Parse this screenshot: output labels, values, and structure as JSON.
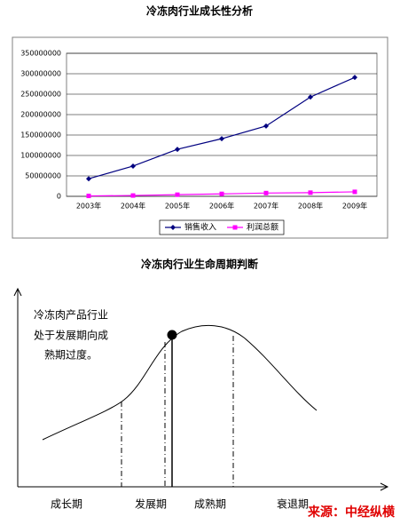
{
  "chart_data": {
    "type": "line",
    "title": "冷冻肉行业成长性分析",
    "categories": [
      "2003年",
      "2004年",
      "2005年",
      "2006年",
      "2007年",
      "2008年",
      "2009年"
    ],
    "series": [
      {
        "name": "销售收入",
        "color": "#000080",
        "values": [
          43000000,
          74000000,
          115000000,
          141000000,
          172000000,
          243000000,
          291000000
        ]
      },
      {
        "name": "利润总额",
        "color": "#ff00ff",
        "values": [
          1000000,
          2000000,
          4000000,
          6000000,
          8000000,
          9000000,
          11000000
        ]
      }
    ],
    "ylim": [
      0,
      350000000
    ],
    "yticks": [
      0,
      50000000,
      100000000,
      150000000,
      200000000,
      250000000,
      300000000,
      350000000
    ],
    "grid": true,
    "legend": "bottom"
  },
  "diagram": {
    "title": "冷冻肉行业生命周期判断",
    "note": [
      "冷冻肉产品行业",
      "处于发展期向成",
      "熟期过度。"
    ],
    "stages": [
      "成长期",
      "发展期",
      "成熟期",
      "衰退期"
    ],
    "source": "来源：中经纵横"
  }
}
